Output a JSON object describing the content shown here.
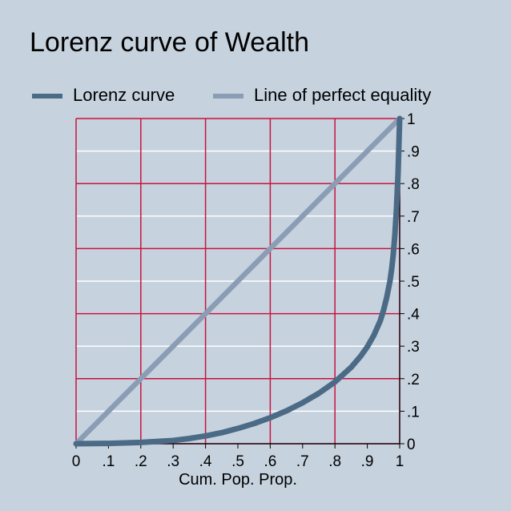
{
  "chart_data": {
    "type": "line",
    "title": "Lorenz curve of Wealth",
    "xlabel": "Cum. Pop. Prop.",
    "ylabel": "",
    "xlim": [
      0,
      1
    ],
    "ylim": [
      0,
      1
    ],
    "x_ticks": [
      "0",
      ".1",
      ".2",
      ".3",
      ".4",
      ".5",
      ".6",
      ".7",
      ".8",
      ".9",
      "1"
    ],
    "y_ticks": [
      "0",
      ".1",
      ".2",
      ".3",
      ".4",
      ".5",
      ".6",
      ".7",
      ".8",
      ".9",
      "1"
    ],
    "y_axis_side": "right",
    "legend_position": "top",
    "grid": true,
    "series": [
      {
        "name": "Lorenz curve",
        "color": "#4a6a85",
        "x": [
          0,
          0.1,
          0.2,
          0.3,
          0.35,
          0.4,
          0.45,
          0.5,
          0.55,
          0.6,
          0.65,
          0.7,
          0.75,
          0.8,
          0.85,
          0.88,
          0.9,
          0.92,
          0.94,
          0.95,
          0.96,
          0.97,
          0.975,
          0.98,
          0.985,
          0.99,
          0.995,
          1.0
        ],
        "y": [
          0,
          0.001,
          0.004,
          0.01,
          0.016,
          0.024,
          0.034,
          0.047,
          0.062,
          0.08,
          0.101,
          0.126,
          0.155,
          0.19,
          0.235,
          0.27,
          0.298,
          0.333,
          0.378,
          0.41,
          0.45,
          0.5,
          0.535,
          0.58,
          0.64,
          0.72,
          0.83,
          1.0
        ]
      },
      {
        "name": "Line of perfect equality",
        "color": "#8a9db5",
        "x": [
          0,
          1
        ],
        "y": [
          0,
          1
        ]
      }
    ]
  }
}
